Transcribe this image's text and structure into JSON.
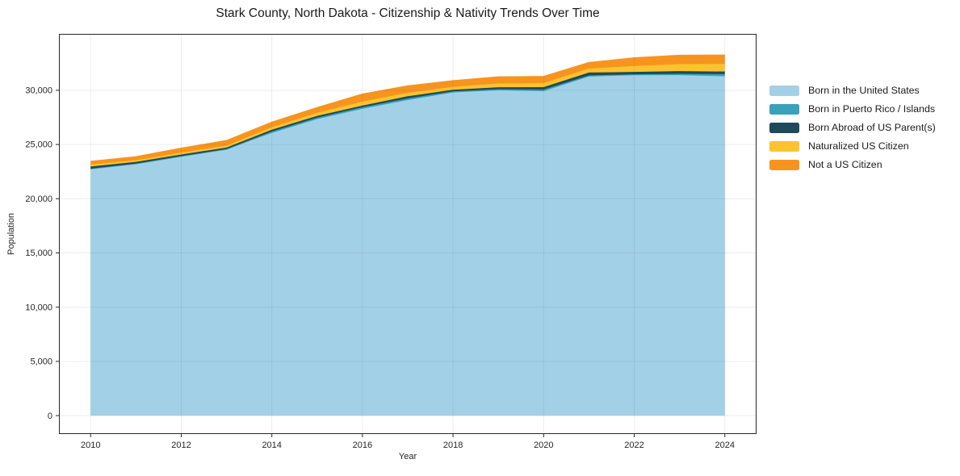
{
  "title": "Stark County, North Dakota - Citizenship & Nativity Trends Over Time",
  "xlabel": "Year",
  "ylabel": "Population",
  "chart_data": {
    "type": "area",
    "stacked": true,
    "title": "Stark County, North Dakota - Citizenship & Nativity Trends Over Time",
    "xlabel": "Year",
    "ylabel": "Population",
    "x": [
      2010,
      2011,
      2012,
      2013,
      2014,
      2015,
      2016,
      2017,
      2018,
      2019,
      2020,
      2021,
      2022,
      2023,
      2024
    ],
    "series": [
      {
        "name": "Born in the United States",
        "color": "#a2d1e7",
        "values": [
          22750,
          23210,
          23900,
          24550,
          26070,
          27340,
          28290,
          29100,
          29800,
          30000,
          29920,
          31270,
          31390,
          31400,
          31290
        ]
      },
      {
        "name": "Born in Puerto Rico / Islands",
        "color": "#38a2ba",
        "values": [
          20,
          30,
          30,
          30,
          130,
          130,
          150,
          150,
          100,
          100,
          150,
          100,
          80,
          120,
          200
        ]
      },
      {
        "name": "Born Abroad of US Parent(s)",
        "color": "#20495c",
        "values": [
          200,
          160,
          150,
          140,
          170,
          170,
          150,
          200,
          150,
          180,
          220,
          270,
          220,
          250,
          240
        ]
      },
      {
        "name": "Naturalized US Citizen",
        "color": "#fdc32e",
        "values": [
          180,
          150,
          170,
          180,
          220,
          280,
          370,
          320,
          270,
          340,
          370,
          370,
          550,
          640,
          700
        ]
      },
      {
        "name": "Not a US Citizen",
        "color": "#f7941f",
        "values": [
          280,
          310,
          400,
          450,
          450,
          470,
          670,
          620,
          550,
          600,
          600,
          530,
          740,
          800,
          800
        ]
      }
    ],
    "x_ticks": [
      2010,
      2012,
      2014,
      2016,
      2018,
      2020,
      2022,
      2024
    ],
    "y_ticks": [
      0,
      5000,
      10000,
      15000,
      20000,
      25000,
      30000
    ],
    "y_tick_labels": [
      "0",
      "5,000",
      "10,000",
      "15,000",
      "20,000",
      "25,000",
      "30,000"
    ],
    "xlim": [
      2009.3,
      2024.7
    ],
    "ylim": [
      -1700,
      35200
    ],
    "grid": true,
    "legend_position": "right"
  }
}
